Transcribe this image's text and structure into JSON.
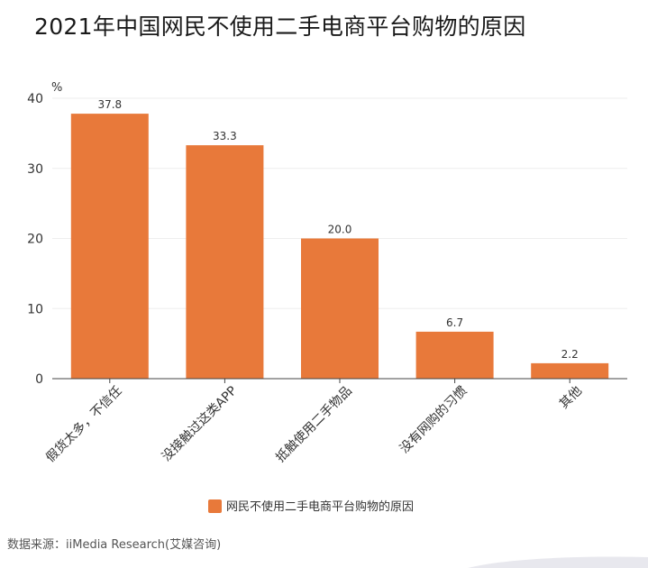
{
  "title": "2021年中国网民不使用二手电商平台购物的原因",
  "source": "数据来源：iiMedia Research(艾媒咨询)",
  "colors": {
    "bar": "#E8793A",
    "grid": "#eeeeee",
    "axis": "#444444"
  },
  "chart_data": {
    "type": "bar",
    "unit_label": "%",
    "categories": [
      "假货太多，不信任",
      "没接触过这类APP",
      "抵触使用二手物品",
      "没有网购的习惯",
      "其他"
    ],
    "series": [
      {
        "name": "网民不使用二手电商平台购物的原因",
        "values": [
          37.8,
          33.3,
          20.0,
          6.7,
          2.2
        ]
      }
    ],
    "value_labels": [
      "37.8",
      "33.3",
      "20.0",
      "6.7",
      "2.2"
    ],
    "ylim": [
      0,
      40
    ],
    "yticks": [
      "0",
      "10",
      "20",
      "30",
      "40"
    ],
    "grid": true,
    "legend_position": "bottom"
  }
}
